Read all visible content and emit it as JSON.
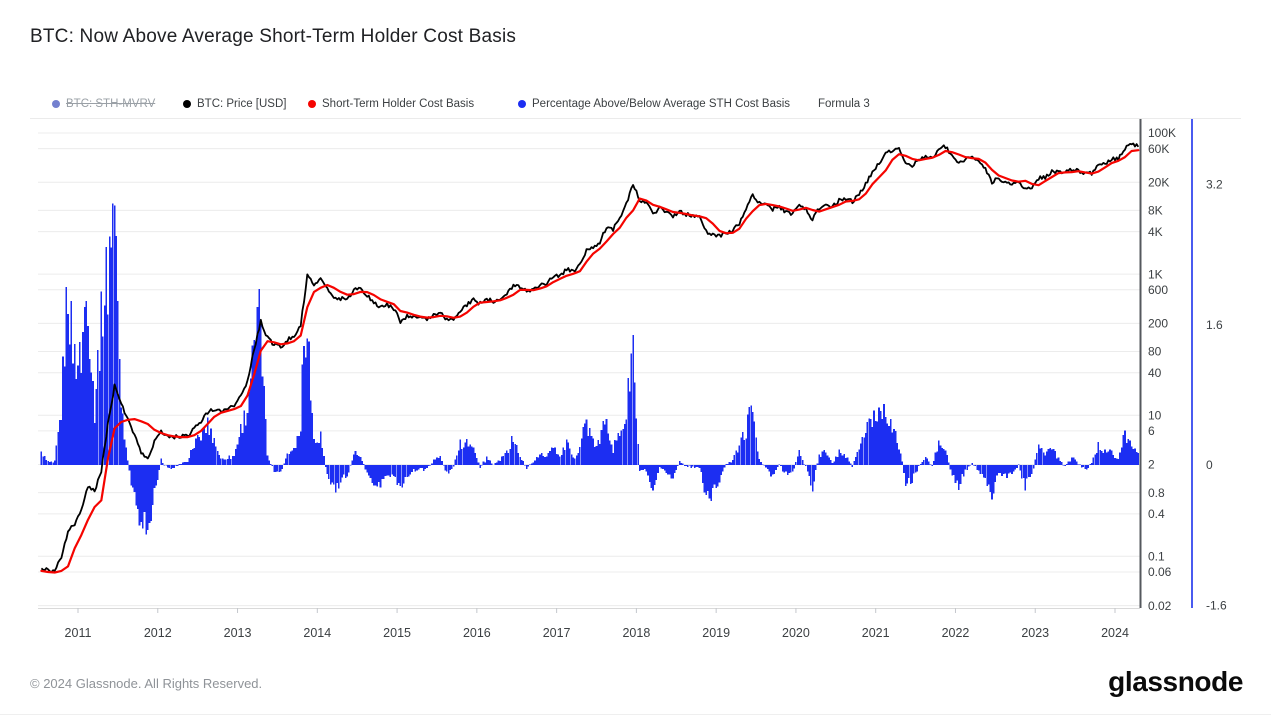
{
  "title": "BTC: Now Above Average Short-Term Holder Cost Basis",
  "legend": {
    "items": [
      {
        "label": "BTC: STH-MVRV",
        "color": "#7480cf",
        "disabled": true
      },
      {
        "label": "BTC: Price [USD]",
        "color": "#000000",
        "disabled": false
      },
      {
        "label": "Short-Term Holder Cost Basis",
        "color": "#f50400",
        "disabled": false
      },
      {
        "label": "Percentage Above/Below Average STH Cost Basis",
        "color": "#1c2ef2",
        "disabled": false
      }
    ],
    "formula_label": "Formula 3"
  },
  "footer": {
    "copyright": "© 2024 Glassnode. All Rights Reserved.",
    "brand": "glassnode"
  },
  "chart_data": {
    "type": "line+bar combo, dual y-axis",
    "x_axis": {
      "years": [
        2011,
        2012,
        2013,
        2014,
        2015,
        2016,
        2017,
        2018,
        2019,
        2020,
        2021,
        2022,
        2023,
        2024
      ],
      "range": [
        2010.5,
        2024.31
      ]
    },
    "price_axis": {
      "scale": "log",
      "side": "right",
      "tick_labels": [
        "100K",
        "60K",
        "20K",
        "8K",
        "4K",
        "1K",
        "600",
        "200",
        "80",
        "40",
        "10",
        "6",
        "2",
        "0.8",
        "0.4",
        "0.1",
        "0.06",
        "0.02"
      ],
      "tick_values": [
        100000,
        60000,
        20000,
        8000,
        4000,
        1000,
        600,
        200,
        80,
        40,
        10,
        6,
        2,
        0.8,
        0.4,
        0.1,
        0.06,
        0.02
      ]
    },
    "pct_axis": {
      "scale": "linear",
      "side": "far-right",
      "axis_line_color": "#4a5bf0",
      "tick_labels": [
        "3.2",
        "1.6",
        "0",
        "-1.6"
      ],
      "tick_values": [
        3.2,
        1.6,
        0,
        -1.6
      ]
    },
    "sampling": {
      "start_year": 2010,
      "start_month": 7,
      "interval": "monthly",
      "points": 166
    },
    "series": [
      {
        "name": "BTC: Price [USD]",
        "type": "line",
        "axis": "price",
        "color": "#000000",
        "values": [
          0.07,
          0.062,
          0.061,
          0.1,
          0.22,
          0.29,
          0.44,
          1.0,
          0.82,
          1.6,
          7.5,
          26,
          14,
          9.0,
          5.2,
          3.0,
          2.3,
          4.3,
          5.9,
          5.0,
          4.9,
          5.0,
          5.1,
          6.4,
          8.0,
          10.9,
          12.3,
          11.6,
          12.4,
          13.4,
          19,
          31,
          85,
          220,
          125,
          100,
          92,
          118,
          134,
          190,
          950,
          730,
          850,
          620,
          470,
          450,
          445,
          590,
          615,
          500,
          395,
          345,
          370,
          320,
          215,
          250,
          248,
          235,
          234,
          258,
          281,
          228,
          234,
          308,
          365,
          428,
          382,
          436,
          415,
          448,
          528,
          668,
          655,
          573,
          608,
          698,
          742,
          955,
          920,
          1180,
          1075,
          1340,
          2250,
          2450,
          2850,
          4650,
          4330,
          6150,
          9800,
          19000,
          11200,
          10300,
          7000,
          8900,
          7500,
          6400,
          7700,
          7000,
          6600,
          6400,
          4000,
          3600,
          3450,
          3850,
          4080,
          5300,
          8550,
          13000,
          10100,
          9600,
          8300,
          9150,
          7550,
          7200,
          9350,
          8550,
          5900,
          8650,
          9450,
          9140,
          11100,
          11650,
          10780,
          13500,
          19200,
          28200,
          38000,
          50000,
          57500,
          62000,
          38000,
          35200,
          40000,
          47000,
          44000,
          61000,
          64500,
          47500,
          38500,
          42500,
          45200,
          39500,
          30500,
          20100,
          23200,
          20100,
          19400,
          20200,
          16000,
          16600,
          23100,
          23500,
          28200,
          29300,
          27200,
          30400,
          29300,
          26000,
          26900,
          34500,
          37500,
          42800,
          42600,
          61500,
          71000,
          64000
        ]
      },
      {
        "name": "Short-Term Holder Cost Basis",
        "type": "line",
        "axis": "price",
        "color": "#f50400",
        "values": [
          0.062,
          0.06,
          0.059,
          0.062,
          0.072,
          0.13,
          0.2,
          0.33,
          0.5,
          0.62,
          2.4,
          6.5,
          8.0,
          8.6,
          8.8,
          8.2,
          7.5,
          6.2,
          5.6,
          5.2,
          5.0,
          4.9,
          4.9,
          5.2,
          6.0,
          7.5,
          9.5,
          10.8,
          11.5,
          12.2,
          13.5,
          19,
          38,
          82,
          112,
          108,
          101,
          104,
          112,
          135,
          340,
          560,
          640,
          700,
          640,
          560,
          510,
          520,
          560,
          555,
          505,
          440,
          405,
          375,
          300,
          285,
          265,
          250,
          242,
          246,
          256,
          252,
          240,
          250,
          285,
          345,
          395,
          402,
          412,
          425,
          462,
          510,
          598,
          598,
          592,
          622,
          672,
          770,
          855,
          945,
          1010,
          1100,
          1500,
          1950,
          2300,
          2900,
          3700,
          4550,
          6300,
          8000,
          11800,
          11000,
          9600,
          9000,
          8300,
          7600,
          7400,
          7100,
          6800,
          6600,
          6200,
          5200,
          4100,
          3800,
          3850,
          4400,
          6100,
          7800,
          9500,
          9900,
          9500,
          9100,
          8500,
          7900,
          8200,
          8700,
          8100,
          7700,
          8300,
          8900,
          9600,
          10700,
          10900,
          11500,
          13800,
          18800,
          23500,
          29500,
          41500,
          50000,
          47500,
          43000,
          41000,
          43000,
          44500,
          49000,
          55500,
          53500,
          49500,
          45500,
          44000,
          43000,
          38000,
          30000,
          25000,
          23000,
          21200,
          20400,
          21000,
          19000,
          18200,
          20800,
          23800,
          27000,
          27600,
          27900,
          28700,
          27600,
          26600,
          28400,
          32500,
          37500,
          40300,
          45500,
          55500,
          57000
        ]
      },
      {
        "name": "Percentage Above/Below Average STH Cost Basis",
        "type": "bar",
        "axis": "pct",
        "color": "#1c2ef2",
        "baseline": 0,
        "derived_from": "price / cost_basis - 1 (ratio of series 0 to series 1, minus 1)"
      }
    ],
    "grid": {
      "horizontal": true,
      "vertical": false,
      "color": "#ececec"
    },
    "plot_border_right_color": "#55585e"
  }
}
